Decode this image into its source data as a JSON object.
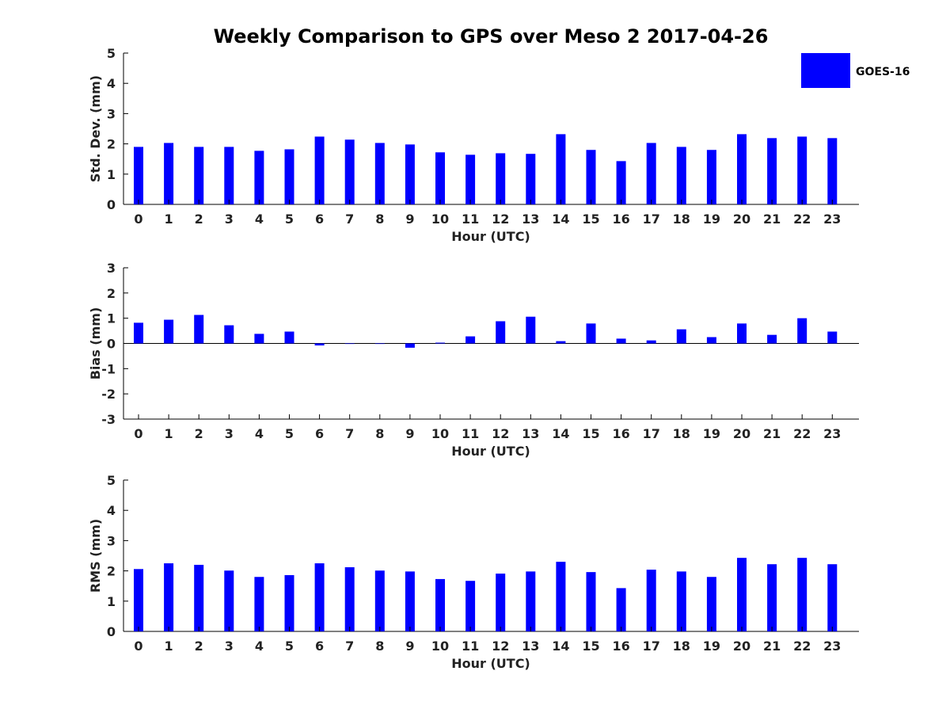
{
  "figure": {
    "title": "Weekly Comparison to GPS over Meso 2 2017-04-26",
    "legend": {
      "label": "GOES-16",
      "color": "#0000ff",
      "placement": "top-right"
    }
  },
  "chart_data": [
    {
      "type": "bar",
      "categories": [
        "0",
        "1",
        "2",
        "3",
        "4",
        "5",
        "6",
        "7",
        "8",
        "9",
        "10",
        "11",
        "12",
        "13",
        "14",
        "15",
        "16",
        "17",
        "18",
        "19",
        "20",
        "21",
        "22",
        "23"
      ],
      "series": [
        {
          "name": "GOES-16",
          "color": "#0000ff",
          "values": [
            1.9,
            2.03,
            1.9,
            1.9,
            1.77,
            1.82,
            2.24,
            2.14,
            2.03,
            1.98,
            1.72,
            1.64,
            1.69,
            1.67,
            2.32,
            1.8,
            1.43,
            2.03,
            1.9,
            1.8,
            2.32,
            2.19,
            2.24,
            2.19
          ]
        }
      ],
      "xlabel": "Hour (UTC)",
      "ylabel": "Std. Dev. (mm)",
      "ylim": [
        0,
        5
      ],
      "yticks": [
        0,
        1,
        2,
        3,
        4,
        5
      ]
    },
    {
      "type": "bar",
      "categories": [
        "0",
        "1",
        "2",
        "3",
        "4",
        "5",
        "6",
        "7",
        "8",
        "9",
        "10",
        "11",
        "12",
        "13",
        "14",
        "15",
        "16",
        "17",
        "18",
        "19",
        "20",
        "21",
        "22",
        "23"
      ],
      "series": [
        {
          "name": "GOES-16",
          "color": "#0000ff",
          "values": [
            0.82,
            0.94,
            1.13,
            0.72,
            0.38,
            0.47,
            -0.08,
            -0.02,
            -0.02,
            -0.17,
            0.03,
            0.28,
            0.88,
            1.06,
            0.09,
            0.79,
            0.19,
            0.12,
            0.56,
            0.25,
            0.79,
            0.34,
            1.0,
            0.47
          ]
        }
      ],
      "xlabel": "Hour (UTC)",
      "ylabel": "Bias (mm)",
      "ylim": [
        -3,
        3
      ],
      "yticks": [
        -3,
        -2,
        -1,
        0,
        1,
        2,
        3
      ],
      "zero_line": true
    },
    {
      "type": "bar",
      "categories": [
        "0",
        "1",
        "2",
        "3",
        "4",
        "5",
        "6",
        "7",
        "8",
        "9",
        "10",
        "11",
        "12",
        "13",
        "14",
        "15",
        "16",
        "17",
        "18",
        "19",
        "20",
        "21",
        "22",
        "23"
      ],
      "series": [
        {
          "name": "GOES-16",
          "color": "#0000ff",
          "values": [
            2.06,
            2.25,
            2.2,
            2.01,
            1.8,
            1.86,
            2.25,
            2.12,
            2.01,
            1.98,
            1.73,
            1.67,
            1.91,
            1.98,
            2.3,
            1.96,
            1.43,
            2.04,
            1.98,
            1.8,
            2.43,
            2.22,
            2.43,
            2.22
          ]
        }
      ],
      "xlabel": "Hour (UTC)",
      "ylabel": "RMS (mm)",
      "ylim": [
        0,
        5
      ],
      "yticks": [
        0,
        1,
        2,
        3,
        4,
        5
      ]
    }
  ]
}
